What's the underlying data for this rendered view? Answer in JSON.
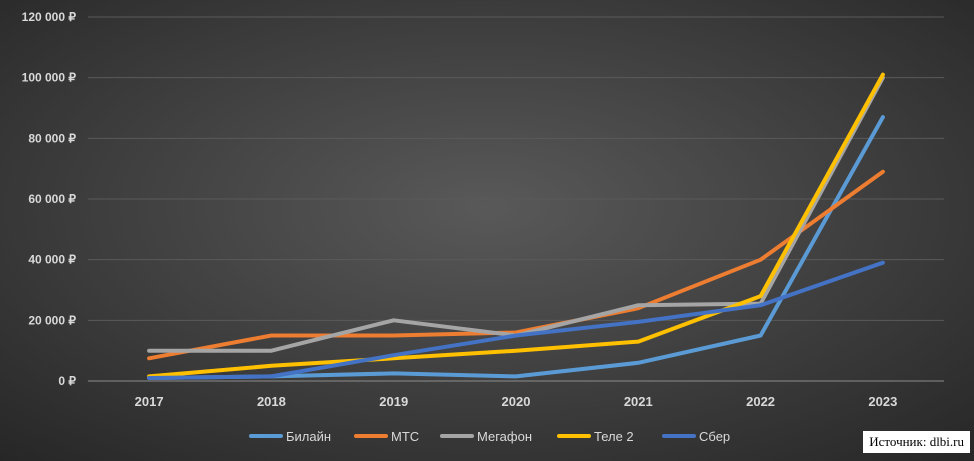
{
  "source": "Источник: dlbi.ru",
  "chart_data": {
    "type": "line",
    "categories": [
      "2017",
      "2018",
      "2019",
      "2020",
      "2021",
      "2022",
      "2023"
    ],
    "ylim": [
      0,
      120000
    ],
    "yticks": [
      0,
      20000,
      40000,
      60000,
      80000,
      100000,
      120000
    ],
    "ytick_labels": [
      "0 ₽",
      "20 000 ₽",
      "40 000 ₽",
      "60 000 ₽",
      "80 000 ₽",
      "100 000 ₽",
      "120 000 ₽"
    ],
    "grid": true,
    "legend_position": "bottom",
    "series": [
      {
        "name": "Билайн",
        "color": "#5b9bd5",
        "values": [
          1000,
          1500,
          2500,
          1500,
          6000,
          15000,
          87000
        ]
      },
      {
        "name": "МТС",
        "color": "#ed7d31",
        "values": [
          7500,
          15000,
          15000,
          16000,
          24000,
          40000,
          69000
        ]
      },
      {
        "name": "Мегафон",
        "color": "#a5a5a5",
        "values": [
          10000,
          10000,
          20000,
          15000,
          25000,
          25500,
          100000
        ]
      },
      {
        "name": "Теле 2",
        "color": "#ffc000",
        "values": [
          1500,
          5000,
          7500,
          10000,
          13000,
          28000,
          101000
        ]
      },
      {
        "name": "Сбер",
        "color": "#4472c4",
        "values": [
          1000,
          1500,
          8500,
          15000,
          19500,
          25000,
          39000
        ]
      }
    ]
  }
}
